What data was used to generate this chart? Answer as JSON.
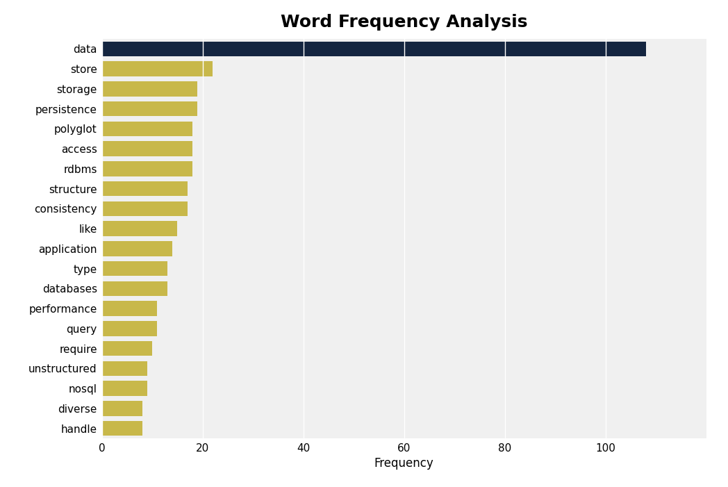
{
  "title": "Word Frequency Analysis",
  "categories": [
    "data",
    "store",
    "storage",
    "persistence",
    "polyglot",
    "access",
    "rdbms",
    "structure",
    "consistency",
    "like",
    "application",
    "type",
    "databases",
    "performance",
    "query",
    "require",
    "unstructured",
    "nosql",
    "diverse",
    "handle"
  ],
  "values": [
    108,
    22,
    19,
    19,
    18,
    18,
    18,
    17,
    17,
    15,
    14,
    13,
    13,
    11,
    11,
    10,
    9,
    9,
    8,
    8
  ],
  "bar_color_special": "#142540",
  "bar_color_normal": "#c8b84a",
  "xlabel": "Frequency",
  "title_fontsize": 18,
  "background_color": "#ffffff",
  "plot_background_color": "#f0f0f0",
  "xlim": [
    0,
    120
  ],
  "xticks": [
    0,
    20,
    40,
    60,
    80,
    100
  ],
  "grid_color": "#ffffff",
  "bar_height": 0.75,
  "label_fontsize": 11,
  "xlabel_fontsize": 12
}
